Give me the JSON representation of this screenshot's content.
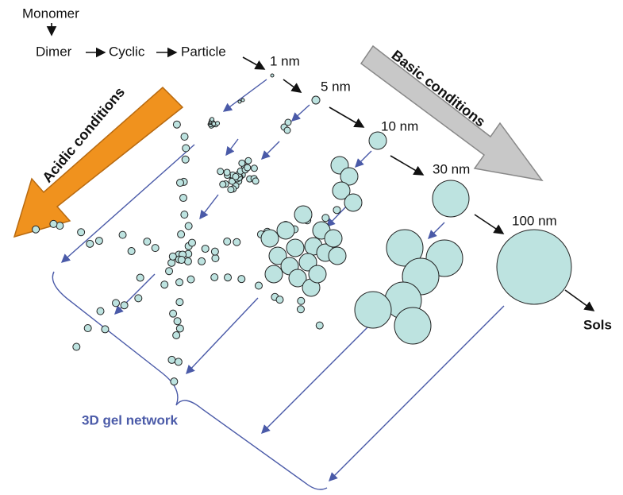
{
  "pathway": [
    "Monomer",
    "Dimer",
    "Cyclic",
    "Particle"
  ],
  "sizes": [
    "1 nm",
    "5 nm",
    "10 nm",
    "30 nm",
    "100 nm"
  ],
  "end_state": "Sols",
  "conditions": {
    "basic": "Basic conditions",
    "acidic": "Acidic conditions"
  },
  "gel_label": "3D gel network"
}
